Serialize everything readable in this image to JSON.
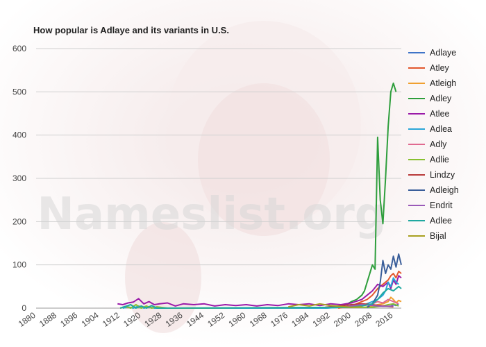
{
  "watermark": "Nameslist.org",
  "chart_data": {
    "type": "line",
    "title": "How popular is Adlaye and its variants in U.S.",
    "xlabel": "",
    "ylabel": "",
    "xlim": [
      1880,
      2019
    ],
    "ylim": [
      0,
      600
    ],
    "yticks": [
      0,
      100,
      200,
      300,
      400,
      500,
      600
    ],
    "xticks": [
      1880,
      1888,
      1896,
      1904,
      1912,
      1920,
      1928,
      1936,
      1944,
      1952,
      1960,
      1968,
      1976,
      1984,
      1992,
      2000,
      2008,
      2016
    ],
    "grid": true,
    "legend_position": "right",
    "series": [
      {
        "name": "Adlaye",
        "color": "#3f74c8",
        "points": [
          [
            2015,
            5
          ],
          [
            2016,
            8
          ],
          [
            2017,
            6
          ],
          [
            2018,
            10
          ]
        ]
      },
      {
        "name": "Atley",
        "color": "#e2562c",
        "points": [
          [
            1995,
            0
          ],
          [
            2000,
            5
          ],
          [
            2004,
            15
          ],
          [
            2006,
            20
          ],
          [
            2008,
            30
          ],
          [
            2010,
            45
          ],
          [
            2012,
            55
          ],
          [
            2014,
            65
          ],
          [
            2015,
            75
          ],
          [
            2016,
            80
          ],
          [
            2017,
            70
          ],
          [
            2018,
            85
          ],
          [
            2019,
            80
          ]
        ]
      },
      {
        "name": "Atleigh",
        "color": "#f0a030",
        "points": [
          [
            2005,
            2
          ],
          [
            2008,
            5
          ],
          [
            2010,
            8
          ],
          [
            2012,
            10
          ],
          [
            2014,
            15
          ],
          [
            2015,
            25
          ],
          [
            2016,
            20
          ],
          [
            2017,
            12
          ],
          [
            2018,
            18
          ],
          [
            2019,
            15
          ]
        ]
      },
      {
        "name": "Adley",
        "color": "#2e9e3c",
        "points": [
          [
            1990,
            0
          ],
          [
            1995,
            2
          ],
          [
            1998,
            8
          ],
          [
            2000,
            15
          ],
          [
            2002,
            20
          ],
          [
            2004,
            30
          ],
          [
            2005,
            40
          ],
          [
            2006,
            60
          ],
          [
            2007,
            80
          ],
          [
            2008,
            100
          ],
          [
            2009,
            90
          ],
          [
            2010,
            395
          ],
          [
            2011,
            250
          ],
          [
            2012,
            195
          ],
          [
            2013,
            300
          ],
          [
            2014,
            420
          ],
          [
            2015,
            500
          ],
          [
            2016,
            520
          ],
          [
            2017,
            500
          ]
        ]
      },
      {
        "name": "Atlee",
        "color": "#9a1aa8",
        "points": [
          [
            1911,
            10
          ],
          [
            1913,
            8
          ],
          [
            1915,
            12
          ],
          [
            1917,
            14
          ],
          [
            1919,
            22
          ],
          [
            1921,
            10
          ],
          [
            1923,
            15
          ],
          [
            1925,
            8
          ],
          [
            1927,
            10
          ],
          [
            1930,
            12
          ],
          [
            1933,
            5
          ],
          [
            1936,
            10
          ],
          [
            1940,
            8
          ],
          [
            1944,
            10
          ],
          [
            1948,
            5
          ],
          [
            1952,
            8
          ],
          [
            1956,
            6
          ],
          [
            1960,
            8
          ],
          [
            1964,
            5
          ],
          [
            1968,
            8
          ],
          [
            1972,
            6
          ],
          [
            1976,
            10
          ],
          [
            1980,
            8
          ],
          [
            1984,
            10
          ],
          [
            1988,
            6
          ],
          [
            1992,
            10
          ],
          [
            1996,
            8
          ],
          [
            2000,
            12
          ],
          [
            2004,
            20
          ],
          [
            2006,
            30
          ],
          [
            2008,
            40
          ],
          [
            2010,
            55
          ],
          [
            2012,
            50
          ],
          [
            2014,
            60
          ],
          [
            2015,
            45
          ],
          [
            2016,
            65
          ],
          [
            2017,
            55
          ],
          [
            2018,
            75
          ],
          [
            2019,
            70
          ]
        ]
      },
      {
        "name": "Adlea",
        "color": "#2aa6d8",
        "points": [
          [
            1913,
            0
          ],
          [
            1915,
            3
          ],
          [
            1917,
            0
          ],
          [
            1919,
            5
          ],
          [
            1921,
            0
          ],
          [
            1923,
            3
          ],
          [
            1925,
            0
          ],
          [
            1990,
            0
          ],
          [
            2000,
            3
          ],
          [
            2005,
            8
          ],
          [
            2008,
            15
          ],
          [
            2010,
            20
          ],
          [
            2012,
            30
          ],
          [
            2013,
            40
          ],
          [
            2014,
            60
          ],
          [
            2015,
            50
          ],
          [
            2016,
            70
          ],
          [
            2017,
            60
          ],
          [
            2018,
            55
          ]
        ]
      },
      {
        "name": "Adly",
        "color": "#e06a90",
        "points": [
          [
            2000,
            2
          ],
          [
            2004,
            5
          ],
          [
            2008,
            10
          ],
          [
            2010,
            15
          ],
          [
            2012,
            12
          ],
          [
            2014,
            20
          ],
          [
            2016,
            15
          ],
          [
            2018,
            10
          ]
        ]
      },
      {
        "name": "Adlie",
        "color": "#88c030",
        "points": [
          [
            1912,
            0
          ],
          [
            1914,
            4
          ],
          [
            1916,
            0
          ],
          [
            1918,
            8
          ],
          [
            1920,
            0
          ],
          [
            1922,
            5
          ],
          [
            1924,
            0
          ],
          [
            1926,
            3
          ],
          [
            1930,
            0
          ],
          [
            2008,
            2
          ],
          [
            2012,
            5
          ],
          [
            2014,
            8
          ],
          [
            2016,
            10
          ],
          [
            2018,
            5
          ]
        ]
      },
      {
        "name": "Lindzy",
        "color": "#b83a3a",
        "points": [
          [
            1990,
            2
          ],
          [
            1995,
            5
          ],
          [
            2000,
            8
          ],
          [
            2004,
            10
          ],
          [
            2008,
            8
          ],
          [
            2012,
            5
          ],
          [
            2016,
            3
          ]
        ]
      },
      {
        "name": "Adleigh",
        "color": "#3a5e9a",
        "points": [
          [
            2006,
            2
          ],
          [
            2008,
            10
          ],
          [
            2010,
            30
          ],
          [
            2011,
            60
          ],
          [
            2012,
            110
          ],
          [
            2013,
            80
          ],
          [
            2014,
            100
          ],
          [
            2015,
            90
          ],
          [
            2016,
            120
          ],
          [
            2017,
            95
          ],
          [
            2018,
            125
          ],
          [
            2019,
            100
          ]
        ]
      },
      {
        "name": "Endrit",
        "color": "#9a5ab8",
        "points": [
          [
            1996,
            2
          ],
          [
            2000,
            5
          ],
          [
            2004,
            8
          ],
          [
            2008,
            6
          ],
          [
            2012,
            4
          ],
          [
            2016,
            5
          ]
        ]
      },
      {
        "name": "Adlee",
        "color": "#20a8a0",
        "points": [
          [
            1912,
            0
          ],
          [
            1916,
            8
          ],
          [
            1918,
            0
          ],
          [
            1920,
            5
          ],
          [
            1922,
            0
          ],
          [
            1924,
            6
          ],
          [
            1926,
            0
          ],
          [
            2000,
            2
          ],
          [
            2004,
            5
          ],
          [
            2008,
            10
          ],
          [
            2010,
            20
          ],
          [
            2012,
            35
          ],
          [
            2014,
            45
          ],
          [
            2016,
            40
          ],
          [
            2018,
            50
          ],
          [
            2019,
            45
          ]
        ]
      },
      {
        "name": "Bijal",
        "color": "#a8a020",
        "points": [
          [
            1976,
            3
          ],
          [
            1980,
            8
          ],
          [
            1984,
            5
          ],
          [
            1988,
            10
          ],
          [
            1992,
            6
          ],
          [
            1996,
            4
          ],
          [
            2000,
            2
          ],
          [
            2004,
            3
          ]
        ]
      }
    ]
  }
}
